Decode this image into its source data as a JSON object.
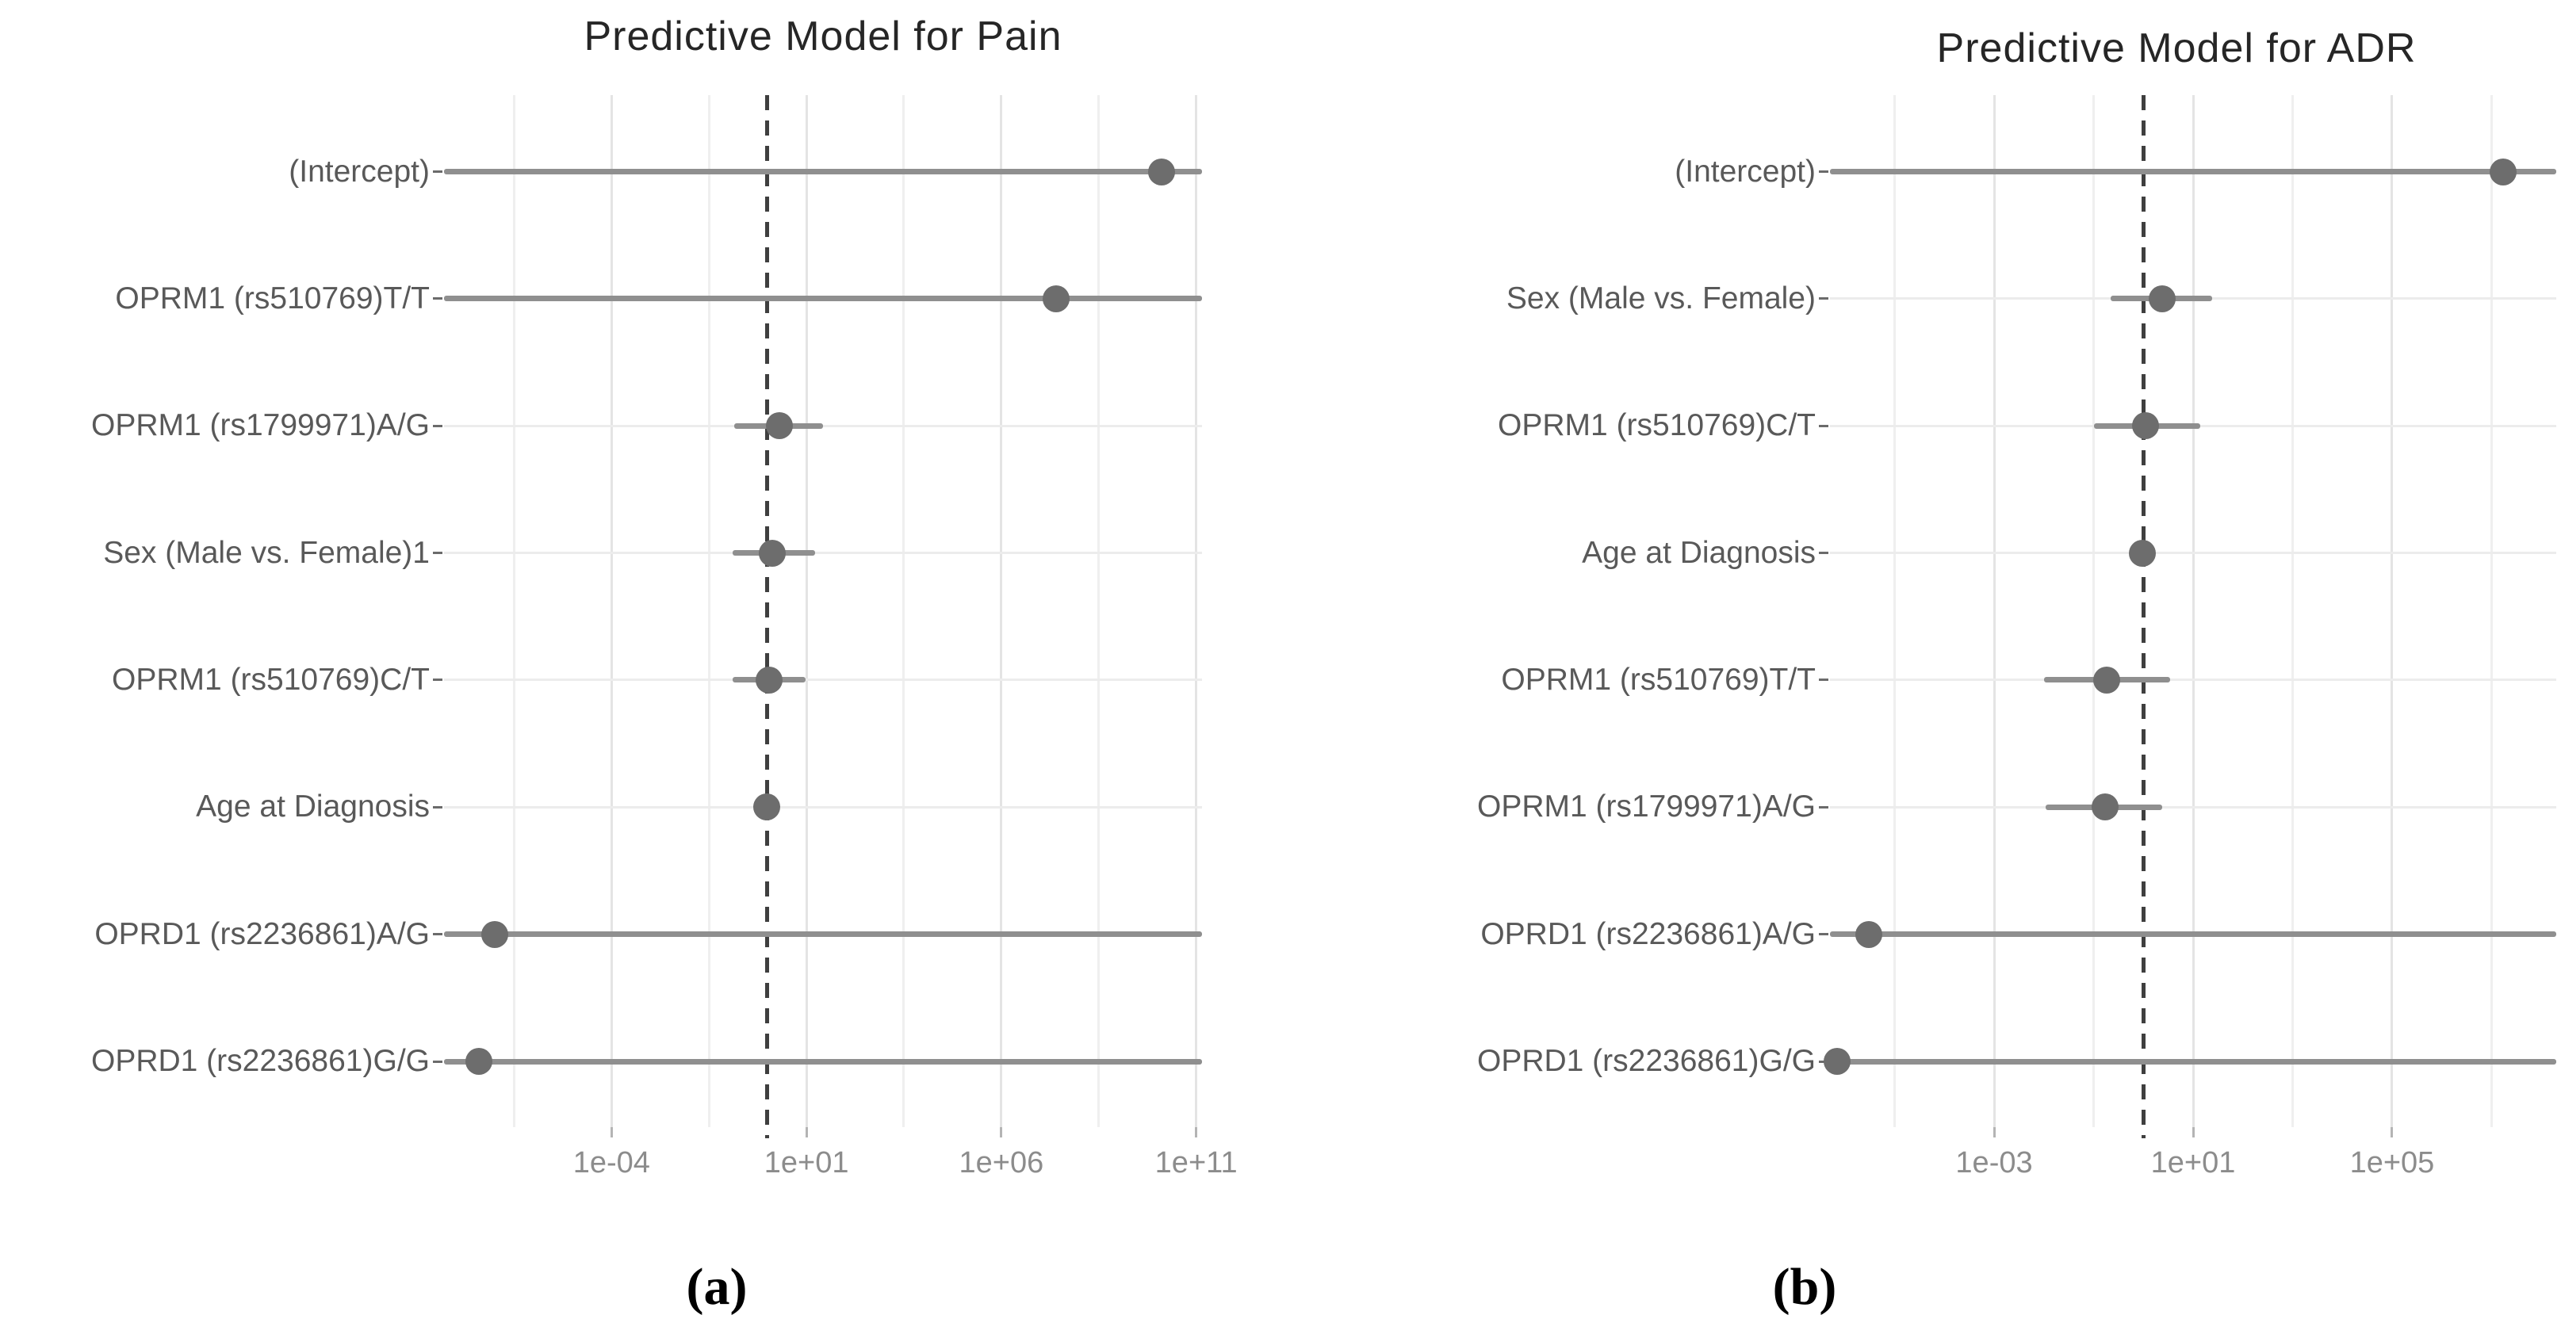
{
  "figure": {
    "background_color": "#ffffff",
    "point_color": "#6d6d6d",
    "ci_line_color": "#8f8f8f",
    "reference_line_color": "#3f3f3f",
    "major_gridline_color": "#e4e4e4",
    "minor_gridline_color": "#efefef",
    "row_gridline_color": "#ececec",
    "title_color": "#262626",
    "axis_label_color": "#595959",
    "tick_label_color": "#8c8c8c"
  },
  "chart_data": [
    {
      "type": "scatter",
      "subtype": "forest-plot-dot-and-ci",
      "title": "Predictive Model for Pain",
      "caption": "(a)",
      "x_scale": "log10",
      "x_domain_log10": [
        -8.3,
        11.15
      ],
      "reference_line": 1,
      "grid": "on",
      "legend": "none",
      "x_ticks": [
        {
          "label": "1e-04",
          "value": 0.0001
        },
        {
          "label": "1e+01",
          "value": 10
        },
        {
          "label": "1e+06",
          "value": 1000000.0
        },
        {
          "label": "1e+11",
          "value": 100000000000.0
        }
      ],
      "x_minor_gridlines": [
        3.16e-07,
        0.0316,
        3162,
        316000000.0
      ],
      "rows": [
        {
          "label": "(Intercept)",
          "estimate": 13000000000.0,
          "ci_low": 5e-09,
          "ci_high": 140000000000.0,
          "ci_truncated": true
        },
        {
          "label": "OPRM1 (rs510769)T/T",
          "estimate": 25000000.0,
          "ci_low": 5e-09,
          "ci_high": 140000000000.0,
          "ci_truncated": true
        },
        {
          "label": "OPRM1 (rs1799971)A/G",
          "estimate": 2.0,
          "ci_low": 0.14,
          "ci_high": 27,
          "ci_truncated": false
        },
        {
          "label": "Sex (Male vs. Female)1",
          "estimate": 1.3,
          "ci_low": 0.13,
          "ci_high": 17,
          "ci_truncated": false
        },
        {
          "label": "OPRM1 (rs510769)C/T",
          "estimate": 1.1,
          "ci_low": 0.13,
          "ci_high": 9.3,
          "ci_truncated": false
        },
        {
          "label": "Age at Diagnosis",
          "estimate": 0.96,
          "ci_low": 0.85,
          "ci_high": 1.08,
          "ci_truncated": false
        },
        {
          "label": "OPRD1 (rs2236861)A/G",
          "estimate": 1e-07,
          "ci_low": 5e-09,
          "ci_high": 140000000000.0,
          "ci_truncated": true
        },
        {
          "label": "OPRD1 (rs2236861)G/G",
          "estimate": 4e-08,
          "ci_low": 5e-09,
          "ci_high": 140000000000.0,
          "ci_truncated": true
        }
      ]
    },
    {
      "type": "scatter",
      "subtype": "forest-plot-dot-and-ci",
      "title": "Predictive Model for ADR",
      "caption": "(b)",
      "x_scale": "log10",
      "x_domain_log10": [
        -6.3,
        8.3
      ],
      "reference_line": 1,
      "grid": "on",
      "legend": "none",
      "x_ticks": [
        {
          "label": "1e-03",
          "value": 0.001
        },
        {
          "label": "1e+01",
          "value": 10
        },
        {
          "label": "1e+05",
          "value": 100000.0
        }
      ],
      "x_minor_gridlines": [
        1e-05,
        0.1,
        1000,
        10000000.0
      ],
      "rows": [
        {
          "label": "(Intercept)",
          "estimate": 17000000.0,
          "ci_low": 4e-07,
          "ci_high": 200000000.0,
          "ci_truncated": true
        },
        {
          "label": "Sex (Male vs. Female)",
          "estimate": 2.4,
          "ci_low": 0.22,
          "ci_high": 24,
          "ci_truncated": false
        },
        {
          "label": "OPRM1 (rs510769)C/T",
          "estimate": 1.1,
          "ci_low": 0.1,
          "ci_high": 14,
          "ci_truncated": false
        },
        {
          "label": "Age at Diagnosis",
          "estimate": 0.95,
          "ci_low": 0.85,
          "ci_high": 1.06,
          "ci_truncated": false
        },
        {
          "label": "OPRM1 (rs510769)T/T",
          "estimate": 0.18,
          "ci_low": 0.01,
          "ci_high": 3.4,
          "ci_truncated": false
        },
        {
          "label": "OPRM1 (rs1799971)A/G",
          "estimate": 0.17,
          "ci_low": 0.011,
          "ci_high": 2.4,
          "ci_truncated": false
        },
        {
          "label": "OPRD1 (rs2236861)A/G",
          "estimate": 3e-06,
          "ci_low": 4e-07,
          "ci_high": 200000000.0,
          "ci_truncated": true
        },
        {
          "label": "OPRD1 (rs2236861)G/G",
          "estimate": 7e-07,
          "ci_low": 4e-07,
          "ci_high": 200000000.0,
          "ci_truncated": true
        }
      ]
    }
  ]
}
